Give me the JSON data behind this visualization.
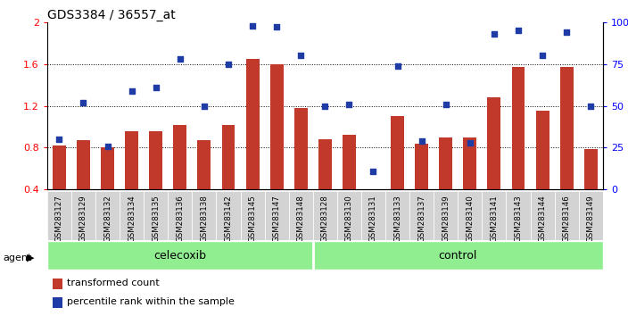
{
  "title": "GDS3384 / 36557_at",
  "samples": [
    "GSM283127",
    "GSM283129",
    "GSM283132",
    "GSM283134",
    "GSM283135",
    "GSM283136",
    "GSM283138",
    "GSM283142",
    "GSM283145",
    "GSM283147",
    "GSM283148",
    "GSM283128",
    "GSM283130",
    "GSM283131",
    "GSM283133",
    "GSM283137",
    "GSM283139",
    "GSM283140",
    "GSM283141",
    "GSM283143",
    "GSM283144",
    "GSM283146",
    "GSM283149"
  ],
  "bar_values": [
    0.82,
    0.87,
    0.8,
    0.96,
    0.96,
    1.02,
    0.87,
    1.02,
    1.65,
    1.6,
    1.18,
    0.88,
    0.92,
    0.4,
    1.1,
    0.84,
    0.9,
    0.9,
    1.28,
    1.57,
    1.15,
    1.57,
    0.79
  ],
  "dot_values_pct": [
    30,
    52,
    26,
    59,
    61,
    78,
    50,
    75,
    98,
    97,
    80,
    50,
    51,
    11,
    74,
    29,
    51,
    28,
    93,
    95,
    80,
    94,
    50
  ],
  "celecoxib_count": 11,
  "control_count": 12,
  "bar_color": "#C0392B",
  "dot_color": "#1F3BA6",
  "ylim_left": [
    0.4,
    2.0
  ],
  "ylim_right": [
    0,
    100
  ],
  "yticks_left": [
    0.4,
    0.8,
    1.2,
    1.6,
    2.0
  ],
  "ytick_labels_left": [
    "0.4",
    "0.8",
    "1.2",
    "1.6",
    "2"
  ],
  "yticks_right": [
    0,
    25,
    50,
    75,
    100
  ],
  "ytick_labels_right": [
    "0",
    "25",
    "50",
    "75",
    "100%"
  ],
  "grid_values": [
    0.8,
    1.2,
    1.6
  ],
  "group_color": "#90EE90",
  "legend_items": [
    "transformed count",
    "percentile rank within the sample"
  ]
}
